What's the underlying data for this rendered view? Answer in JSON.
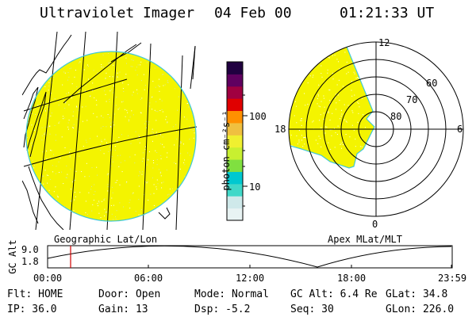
{
  "header": {
    "title": "Ultraviolet Imager",
    "date": "04 Feb 00",
    "time": "01:21:33 UT"
  },
  "panels": {
    "geo_label": "Geographic Lat/Lon",
    "apex_label": "Apex MLat/MLT"
  },
  "colorbar": {
    "unit_label": "photon cm⁻²s⁻¹",
    "tick_labels": [
      "100",
      "10"
    ],
    "colors": [
      "#e8f3f3",
      "#cfe9ea",
      "#40d8c8",
      "#00c8d0",
      "#80e040",
      "#c8f030",
      "#f0f030",
      "#f0c040",
      "#ff9000",
      "#e00000",
      "#a00040",
      "#600060",
      "#200040"
    ]
  },
  "polar": {
    "mlt_labels": [
      "12",
      "6",
      "0",
      "18"
    ],
    "lat_labels": [
      "60",
      "70",
      "80"
    ]
  },
  "altitude_plot": {
    "axis_label": "GC Alt",
    "y_ticks": [
      "9.0",
      "1.8"
    ],
    "x_ticks": [
      "00:00",
      "06:00",
      "12:00",
      "18:00",
      "23:59"
    ]
  },
  "info": {
    "flt": "Flt: HOME",
    "door": "Door: Open",
    "mode": "Mode: Normal",
    "gc_alt": "GC Alt: 6.4 Re",
    "glat": "GLat: 34.8",
    "ip": "IP: 36.0",
    "gain": "Gain: 13",
    "dsp": "Dsp:    -5.2",
    "seq": "Seq: 30",
    "glon": "GLon: 226.0"
  },
  "accent_colors": {
    "image_fill": "#f4f400",
    "limb": "#40c8d8",
    "marker": "#d00000"
  }
}
